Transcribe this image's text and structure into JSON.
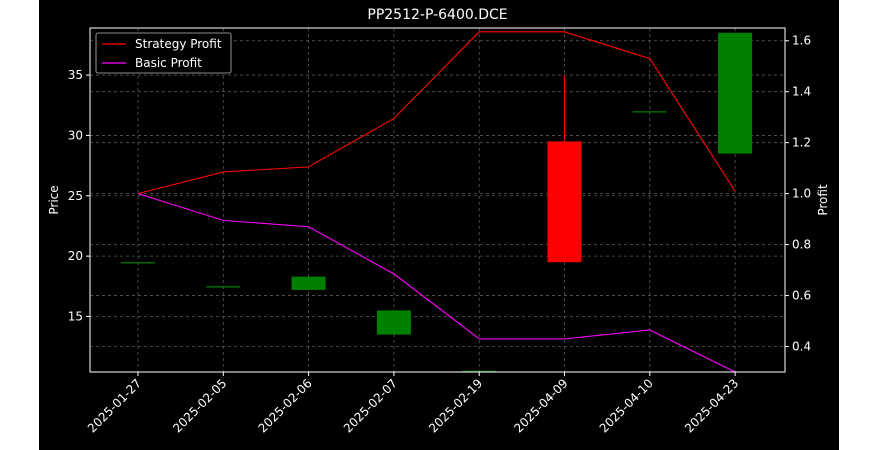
{
  "chart_data": {
    "type": "candlestick+line",
    "title": "PP2512-P-6400.DCE",
    "ylabel_left": "Price",
    "ylabel_right": "Profit",
    "categories": [
      "2025-01-27",
      "2025-02-05",
      "2025-02-06",
      "2025-02-07",
      "2025-02-19",
      "2025-04-09",
      "2025-04-10",
      "2025-04-23"
    ],
    "y_left": {
      "range": [
        10.4,
        38.9
      ],
      "ticks": [
        15,
        20,
        25,
        30,
        35
      ]
    },
    "y_right": {
      "range": [
        0.3,
        1.65
      ],
      "ticks": [
        0.4,
        0.6,
        0.8,
        1.0,
        1.2,
        1.4,
        1.6
      ]
    },
    "grid": true,
    "legend": {
      "placement": "top-left",
      "entries": [
        {
          "name": "Strategy Profit",
          "color": "#ff0000"
        },
        {
          "name": "Basic Profit",
          "color": "#ff00ff"
        }
      ]
    },
    "candles": [
      {
        "date": "2025-01-27",
        "open": 19.5,
        "high": 19.5,
        "low": 19.5,
        "close": 19.5
      },
      {
        "date": "2025-02-05",
        "open": 17.5,
        "high": 17.5,
        "low": 17.5,
        "close": 17.5
      },
      {
        "date": "2025-02-06",
        "open": 17.2,
        "high": 18.3,
        "low": 17.2,
        "close": 18.3
      },
      {
        "date": "2025-02-07",
        "open": 13.5,
        "high": 15.5,
        "low": 13.5,
        "close": 15.5
      },
      {
        "date": "2025-02-19",
        "open": 10.5,
        "high": 10.5,
        "low": 10.5,
        "close": 10.5
      },
      {
        "date": "2025-04-09",
        "open": 29.5,
        "high": 35.0,
        "low": 19.5,
        "close": 19.5
      },
      {
        "date": "2025-04-10",
        "open": 32.0,
        "high": 32.0,
        "low": 32.0,
        "close": 32.0
      },
      {
        "date": "2025-04-23",
        "open": 28.5,
        "high": 38.5,
        "low": 28.5,
        "close": 38.5
      }
    ],
    "series": [
      {
        "name": "Strategy Profit",
        "axis": "right",
        "color": "#ff0000",
        "values": [
          1.0,
          1.085,
          1.105,
          1.295,
          1.635,
          1.635,
          1.53,
          1.01
        ]
      },
      {
        "name": "Basic Profit",
        "axis": "right",
        "color": "#ff00ff",
        "values": [
          1.0,
          0.895,
          0.87,
          0.685,
          0.43,
          0.43,
          0.465,
          0.3
        ]
      }
    ],
    "colors": {
      "up": "#008000",
      "down": "#ff0000",
      "background": "#000000",
      "grid": "#7f7f7f"
    }
  }
}
